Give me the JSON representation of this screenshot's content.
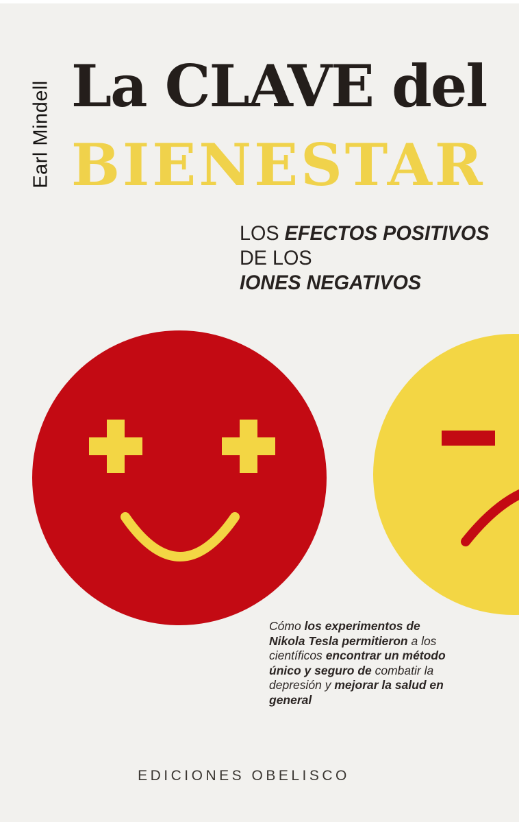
{
  "cover": {
    "author": "Earl Mindell",
    "title": {
      "line1": "La CLAVE del",
      "line2": "BIENESTAR"
    },
    "subtitle": {
      "lines": [
        [
          {
            "text": "LOS ",
            "bold": false
          },
          {
            "text": "EFECTOS POSITIVOS",
            "bold": true
          }
        ],
        [
          {
            "text": "DE LOS",
            "bold": false
          }
        ],
        [
          {
            "text": "IONES NEGATIVOS",
            "bold": true
          }
        ]
      ]
    },
    "tagline": {
      "lines": [
        [
          {
            "text": "Cómo ",
            "bold": false
          },
          {
            "text": "los experimentos de",
            "bold": true
          }
        ],
        [
          {
            "text": "Nikola Tesla permitieron",
            "bold": true
          },
          {
            "text": " a los",
            "bold": false
          }
        ],
        [
          {
            "text": "científicos ",
            "bold": false
          },
          {
            "text": "encontrar un método",
            "bold": true
          }
        ],
        [
          {
            "text": "único y seguro de ",
            "bold": true
          },
          {
            "text": "combatir la",
            "bold": false
          }
        ],
        [
          {
            "text": "depresión y ",
            "bold": false
          },
          {
            "text": "mejorar la salud en",
            "bold": true
          }
        ],
        [
          {
            "text": "general",
            "bold": true
          }
        ]
      ]
    },
    "publisher": "EDICIONES OBELISCO",
    "faces": {
      "happy_face": "red circle with plus-sign eyes and smile (positive ions)",
      "sad_face": "yellow circle with minus-sign eye and frown (negative ions)"
    },
    "colors": {
      "bg": "#f2f1ee",
      "ink": "#241e1b",
      "red": "#c30a13",
      "yellow_face": "#f3d644",
      "yellow_title": "#f0d24b"
    }
  }
}
